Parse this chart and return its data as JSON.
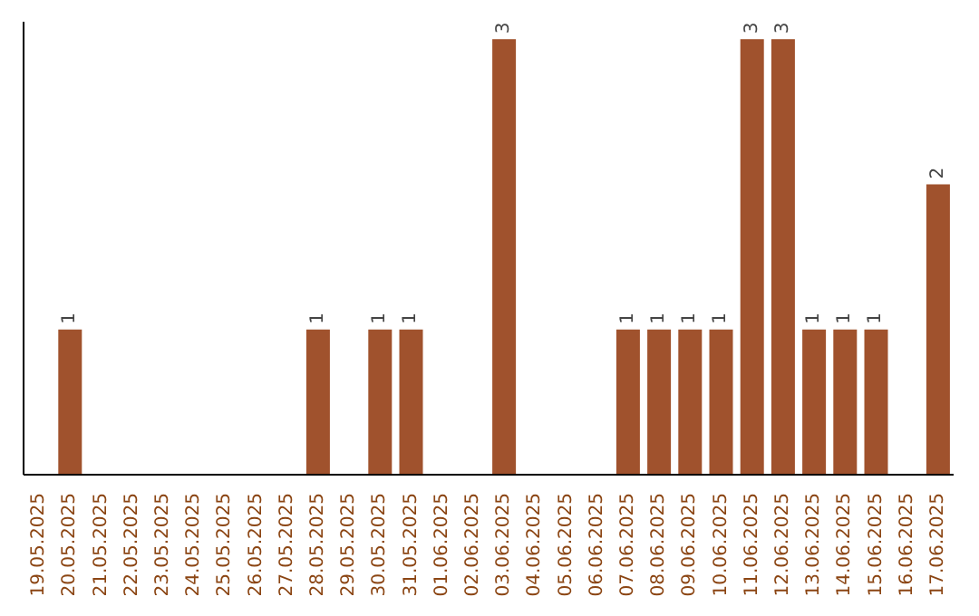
{
  "chart_data": {
    "type": "bar",
    "categories": [
      "19.05.2025",
      "20.05.2025",
      "21.05.2025",
      "22.05.2025",
      "23.05.2025",
      "24.05.2025",
      "25.05.2025",
      "26.05.2025",
      "27.05.2025",
      "28.05.2025",
      "29.05.2025",
      "30.05.2025",
      "31.05.2025",
      "01.06.2025",
      "02.06.2025",
      "03.06.2025",
      "04.06.2025",
      "05.06.2025",
      "06.06.2025",
      "07.06.2025",
      "08.06.2025",
      "09.06.2025",
      "10.06.2025",
      "11.06.2025",
      "12.06.2025",
      "13.06.2025",
      "14.06.2025",
      "15.06.2025",
      "16.06.2025",
      "17.06.2025"
    ],
    "values": [
      0,
      1,
      0,
      0,
      0,
      0,
      0,
      0,
      0,
      1,
      0,
      1,
      1,
      0,
      0,
      3,
      0,
      0,
      0,
      1,
      1,
      1,
      1,
      3,
      3,
      1,
      1,
      1,
      0,
      2
    ],
    "value_labels": [
      null,
      "1",
      null,
      null,
      null,
      null,
      null,
      null,
      null,
      "1",
      null,
      "1",
      "1",
      null,
      null,
      "3",
      null,
      null,
      null,
      "1",
      "1",
      "1",
      "1",
      "3",
      "3",
      "1",
      "1",
      "1",
      null,
      "2"
    ],
    "color": "#a0522d",
    "grid": false,
    "legend": false
  }
}
